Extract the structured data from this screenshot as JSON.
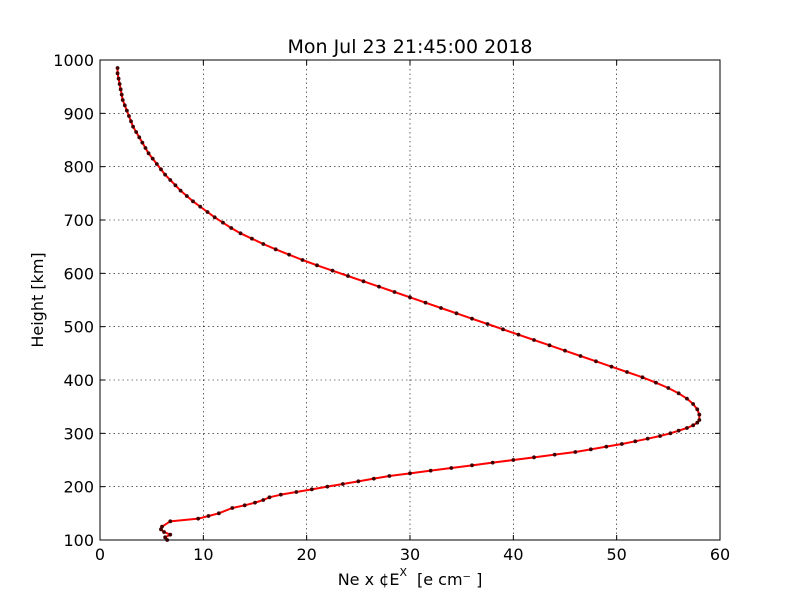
{
  "chart_data": {
    "type": "line",
    "title": "Mon Jul 23 21:45:00 2018",
    "xlabel_main": "Ne x ¢E",
    "xlabel_sup": "X",
    "xlabel_unit": "[e cm⁻ ]",
    "ylabel": "Height [km]",
    "xlim": [
      0,
      60
    ],
    "ylim": [
      100,
      1000
    ],
    "x_ticks": [
      0,
      10,
      20,
      30,
      40,
      50,
      60
    ],
    "y_ticks": [
      100,
      200,
      300,
      400,
      500,
      600,
      700,
      800,
      900,
      1000
    ],
    "grid": true,
    "line_color": "#ff0000",
    "marker_color": "#400000",
    "series": [
      {
        "x": [
          6.5,
          6.3,
          6.8,
          6.2,
          5.9,
          6.0,
          6.8,
          9.5,
          10.5,
          11.5,
          12.8,
          14.0,
          15.0,
          15.8,
          16.4,
          17.5,
          19.0,
          20.5,
          22.0,
          23.5,
          25.0,
          26.5,
          28.0,
          30.0,
          32.0,
          34.0,
          36.0,
          38.0,
          40.0,
          42.0,
          44.0,
          46.0,
          47.5,
          49.0,
          50.5,
          51.8,
          53.0,
          54.2,
          55.2,
          56.0,
          56.8,
          57.4,
          57.8,
          58.0,
          58.0,
          57.8,
          57.4,
          56.8,
          56.0,
          55.0,
          53.8,
          52.5,
          51.0,
          49.5,
          48.0,
          46.5,
          45.0,
          43.5,
          42.0,
          40.5,
          39.0,
          37.5,
          36.0,
          34.5,
          33.0,
          31.5,
          30.0,
          28.5,
          27.0,
          25.5,
          24.0,
          22.5,
          21.0,
          19.6,
          18.3,
          17.0,
          15.8,
          14.7,
          13.6,
          12.7,
          11.9,
          11.1,
          10.4,
          9.7,
          9.0,
          8.4,
          7.8,
          7.3,
          6.8,
          6.3,
          5.9,
          5.5,
          5.1,
          4.7,
          4.4,
          4.1,
          3.8,
          3.5,
          3.2,
          3.0,
          2.8,
          2.6,
          2.4,
          2.2,
          2.1,
          2.0,
          1.9,
          1.8,
          1.7,
          1.7
        ],
        "y": [
          100,
          105,
          110,
          115,
          120,
          125,
          135,
          140,
          145,
          150,
          160,
          165,
          170,
          175,
          180,
          185,
          190,
          195,
          200,
          205,
          210,
          215,
          220,
          225,
          230,
          235,
          240,
          245,
          250,
          255,
          260,
          265,
          270,
          275,
          280,
          285,
          290,
          295,
          300,
          305,
          310,
          315,
          320,
          325,
          335,
          345,
          355,
          365,
          375,
          385,
          395,
          405,
          415,
          425,
          435,
          445,
          455,
          465,
          475,
          485,
          495,
          505,
          515,
          525,
          535,
          545,
          555,
          565,
          575,
          585,
          595,
          605,
          615,
          625,
          635,
          645,
          655,
          665,
          675,
          685,
          695,
          705,
          715,
          725,
          735,
          745,
          755,
          765,
          775,
          785,
          795,
          805,
          815,
          825,
          835,
          845,
          855,
          865,
          875,
          885,
          895,
          905,
          915,
          925,
          935,
          945,
          955,
          965,
          975,
          985
        ]
      }
    ]
  }
}
